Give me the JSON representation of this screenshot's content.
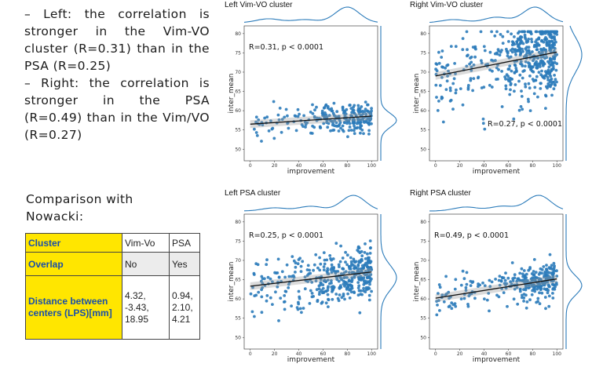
{
  "text": {
    "bullet1": "– Left: the correlation is stronger in the Vim-VO cluster (R=0.31) than in the PSA (R=0.25)",
    "bullet2": "– Right: the correlation is stronger in the PSA (R=0.49) than in the Vim/VO (R=0.27)",
    "comparison": "Comparison with Nowacki:"
  },
  "table": {
    "rows": [
      {
        "header": "Cluster",
        "vim": "Vim-Vo",
        "psa": "PSA"
      },
      {
        "header": "Overlap",
        "vim": "No",
        "psa": "Yes"
      },
      {
        "header": "Distance between centers (LPS)[mm]",
        "vim": "4.32, -3.43, 18.95",
        "psa": "0.94, 2.10, 4.21"
      }
    ]
  },
  "colors": {
    "points": "#2b7bba",
    "fit": "#111111",
    "highlight": "#ffe600",
    "header_text": "#1a4fa8"
  },
  "chart_data": [
    {
      "type": "scatter",
      "title": "Left Vim-VO cluster",
      "xlabel": "improvement",
      "ylabel": "inter_mean",
      "xlim": [
        -5,
        105
      ],
      "ylim": [
        47,
        82
      ],
      "xticks": [
        0,
        20,
        40,
        60,
        80,
        100
      ],
      "yticks": [
        50,
        55,
        60,
        65,
        70,
        75,
        80
      ],
      "annotation": "R=0.31, p < 0.0001",
      "annotation_position": "top-left",
      "fit": {
        "x0": 0,
        "y0": 56.5,
        "x1": 100,
        "y1": 58.6
      },
      "dist_center": 57.5,
      "dist_sd": 1.8,
      "point_sd": 2.0,
      "n": 260,
      "seed": 11,
      "x_marginal_peaks": [
        [
          15,
          0.25
        ],
        [
          45,
          0.2
        ],
        [
          80,
          1.0
        ]
      ]
    },
    {
      "type": "scatter",
      "title": "Right Vim-VO cluster",
      "xlabel": "improvement",
      "ylabel": "inter_mean",
      "xlim": [
        -5,
        105
      ],
      "ylim": [
        47,
        82
      ],
      "xticks": [
        0,
        20,
        40,
        60,
        80,
        100
      ],
      "yticks": [
        50,
        55,
        60,
        65,
        70,
        75,
        80
      ],
      "annotation": "R=0.27, p < 0.0001",
      "annotation_position": "bottom-right",
      "fit": {
        "x0": 0,
        "y0": 69.0,
        "x1": 100,
        "y1": 75.2
      },
      "dist_center": 74.5,
      "dist_sd": 4.5,
      "point_sd": 5.5,
      "n": 520,
      "seed": 23,
      "x_marginal_peaks": [
        [
          15,
          0.2
        ],
        [
          50,
          0.35
        ],
        [
          82,
          1.0
        ]
      ]
    },
    {
      "type": "scatter",
      "title": "Left PSA cluster",
      "xlabel": "improvement",
      "ylabel": "inter_mean",
      "xlim": [
        -5,
        105
      ],
      "ylim": [
        47,
        82
      ],
      "xticks": [
        0,
        20,
        40,
        60,
        80,
        100
      ],
      "yticks": [
        50,
        55,
        60,
        65,
        70,
        75,
        80
      ],
      "annotation": "R=0.25, p < 0.0001",
      "annotation_position": "top-left",
      "fit": {
        "x0": 0,
        "y0": 63.3,
        "x1": 100,
        "y1": 67.0
      },
      "dist_center": 65.5,
      "dist_sd": 3.2,
      "point_sd": 3.5,
      "n": 420,
      "seed": 37,
      "x_marginal_peaks": [
        [
          20,
          0.2
        ],
        [
          50,
          0.3
        ],
        [
          85,
          1.0
        ]
      ]
    },
    {
      "type": "scatter",
      "title": "Right PSA cluster",
      "xlabel": "improvement",
      "ylabel": "inter_mean",
      "xlim": [
        -5,
        105
      ],
      "ylim": [
        47,
        82
      ],
      "xticks": [
        0,
        20,
        40,
        60,
        80,
        100
      ],
      "yticks": [
        50,
        55,
        60,
        65,
        70,
        75,
        80
      ],
      "annotation": "R=0.49, p < 0.0001",
      "annotation_position": "top-left",
      "fit": {
        "x0": 0,
        "y0": 60.2,
        "x1": 100,
        "y1": 65.2
      },
      "dist_center": 63.5,
      "dist_sd": 2.5,
      "point_sd": 2.4,
      "n": 300,
      "seed": 53,
      "x_marginal_peaks": [
        [
          25,
          0.25
        ],
        [
          55,
          0.3
        ],
        [
          85,
          1.0
        ]
      ]
    }
  ]
}
